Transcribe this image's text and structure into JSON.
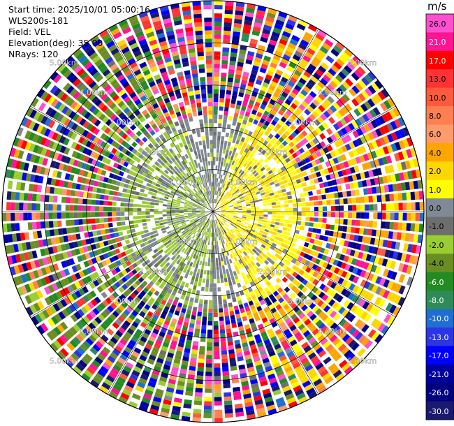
{
  "chart_data": {
    "type": "polar-radar-ppi",
    "header": {
      "start_time": "Start time: 2025/10/01 05:00:16",
      "instrument": "WLS200s-181",
      "field": "Field: VEL",
      "elevation": "Elevation(deg): 35.00",
      "nrays": "NRays: 120"
    },
    "units": "m/s",
    "num_rays": 120,
    "range_rings_km": [
      1.0,
      2.0,
      3.0,
      4.0,
      5.0
    ],
    "range_labels": [
      "1.00km",
      "2.00km",
      "3.00km",
      "4.00km",
      "5.00km"
    ],
    "max_range_km": 5.0,
    "colorbar": {
      "ticks": [
        "26.0",
        "21.0",
        "17.0",
        "13.0",
        "10.0",
        "8.0",
        "6.0",
        "4.0",
        "2.0",
        "1.0",
        "0.0",
        "-1.0",
        "-2.0",
        "-4.0",
        "-6.0",
        "-8.0",
        "-10.0",
        "-13.0",
        "-17.0",
        "-21.0",
        "-26.0",
        "-30.0"
      ],
      "bins": [
        {
          "min": 26,
          "max": 30,
          "color": "#ff4fd1"
        },
        {
          "min": 21,
          "max": 26,
          "color": "#ff1493"
        },
        {
          "min": 17,
          "max": 21,
          "color": "#ff0000"
        },
        {
          "min": 13,
          "max": 17,
          "color": "#ff3333"
        },
        {
          "min": 10,
          "max": 13,
          "color": "#ff5a3c"
        },
        {
          "min": 8,
          "max": 10,
          "color": "#ff7f50"
        },
        {
          "min": 6,
          "max": 8,
          "color": "#ff9a6a"
        },
        {
          "min": 4,
          "max": 6,
          "color": "#ffa500"
        },
        {
          "min": 2,
          "max": 4,
          "color": "#ffd700"
        },
        {
          "min": 1,
          "max": 2,
          "color": "#ffff00"
        },
        {
          "min": 0,
          "max": 1,
          "color": "#808a96"
        },
        {
          "min": -1,
          "max": 0,
          "color": "#6e6e6e"
        },
        {
          "min": -2,
          "max": -1,
          "color": "#9acd32"
        },
        {
          "min": -4,
          "max": -2,
          "color": "#6b8e23"
        },
        {
          "min": -6,
          "max": -4,
          "color": "#228b22"
        },
        {
          "min": -8,
          "max": -6,
          "color": "#2e8b57"
        },
        {
          "min": -10,
          "max": -8,
          "color": "#1e6fd0"
        },
        {
          "min": -13,
          "max": -10,
          "color": "#2b35e6"
        },
        {
          "min": -17,
          "max": -13,
          "color": "#0000ff"
        },
        {
          "min": -21,
          "max": -17,
          "color": "#0000a0"
        },
        {
          "min": -26,
          "max": -21,
          "color": "#000080"
        },
        {
          "min": -30,
          "max": -26,
          "color": "#191970"
        }
      ]
    },
    "field_pattern": {
      "near_range_km": 2.3,
      "positive_sector_azimuth_deg": [
        20,
        160
      ],
      "negative_sector_azimuth_deg": [
        180,
        340
      ],
      "far_range_noise": true
    }
  }
}
